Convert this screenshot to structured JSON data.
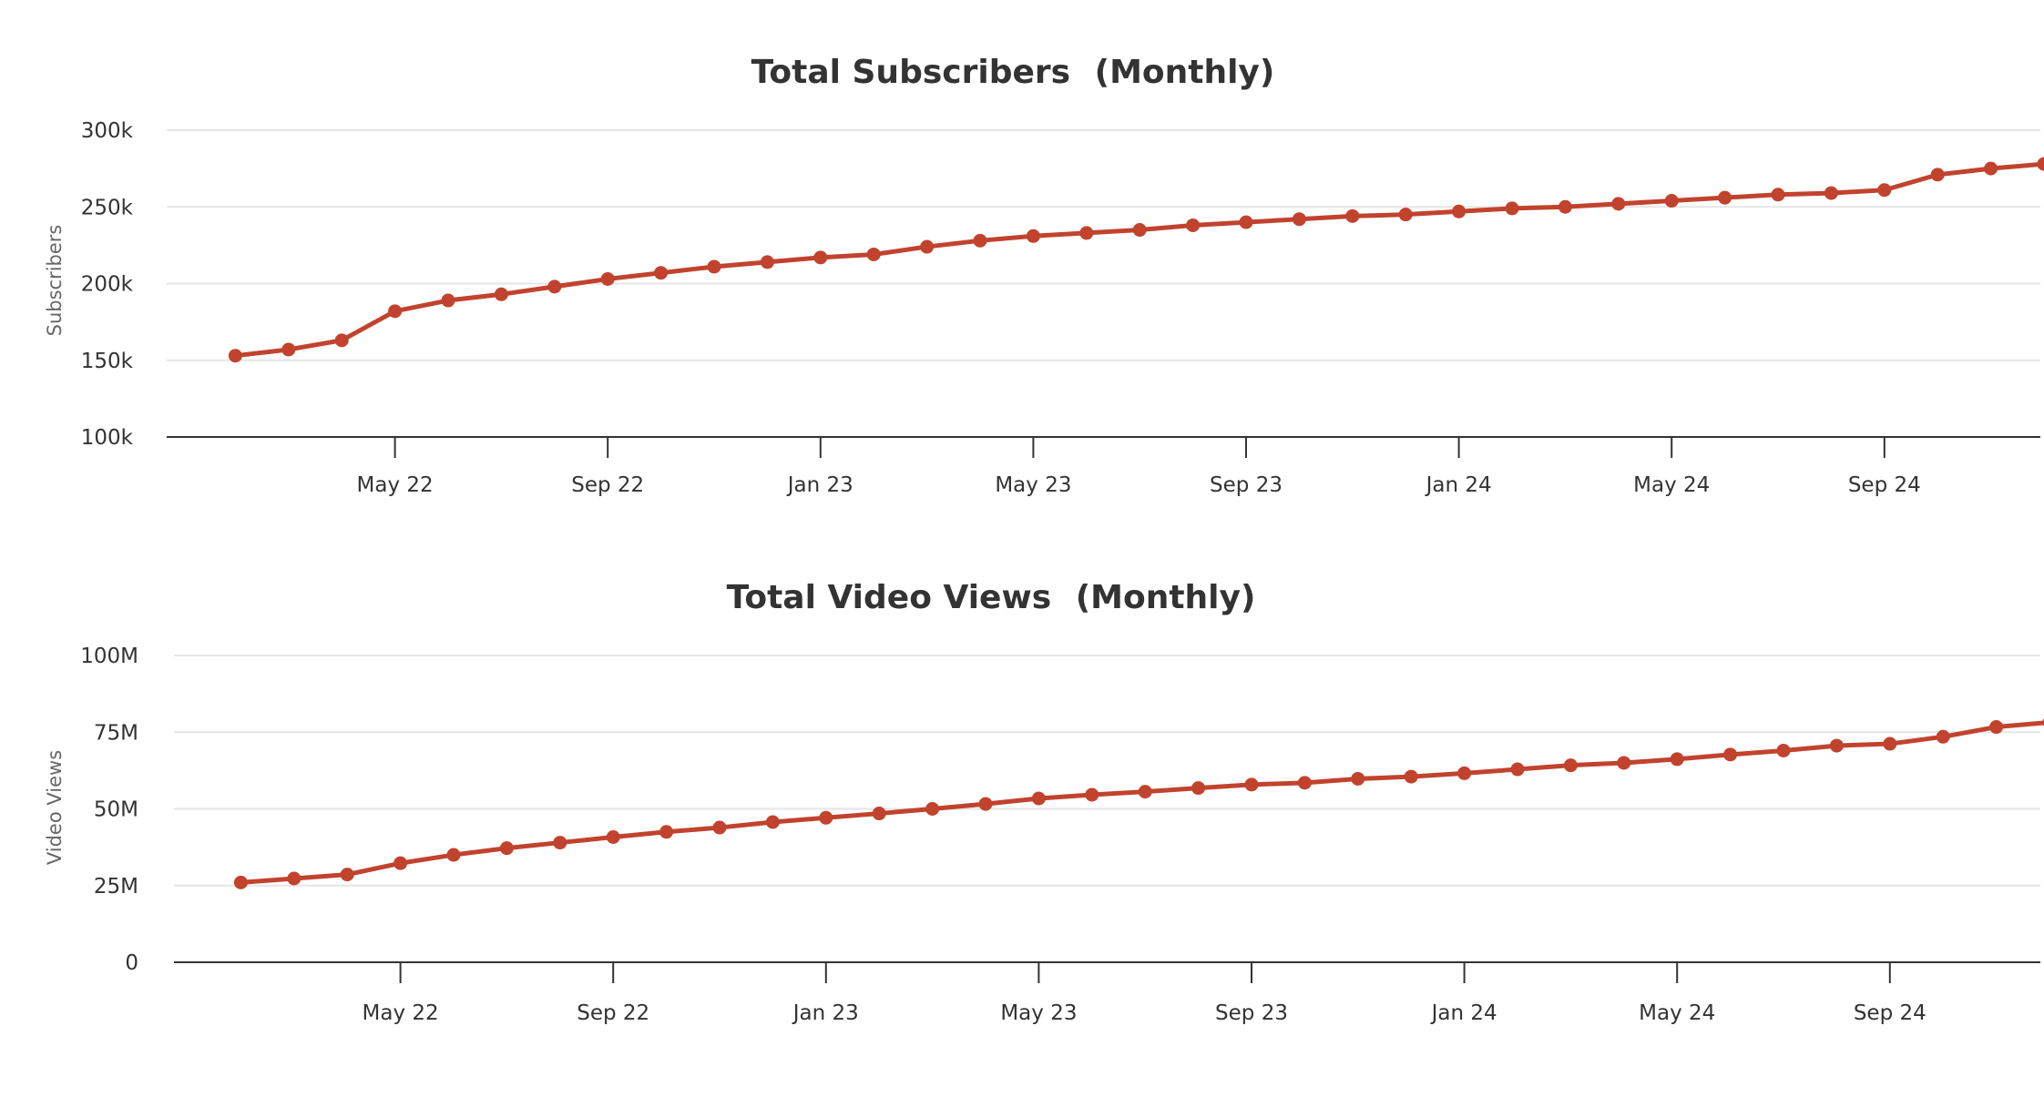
{
  "colors": {
    "series": "#c1432e",
    "grid": "#e6e6e6",
    "axis": "#333333",
    "text": "#333333"
  },
  "chart_data": [
    {
      "type": "line",
      "title": "Total Subscribers",
      "title_suffix": "(Monthly)",
      "ylabel": "Subscribers",
      "ylim": [
        100000,
        300000
      ],
      "yticks": [
        100000,
        150000,
        200000,
        250000,
        300000
      ],
      "ytick_labels": [
        "100k",
        "150k",
        "200k",
        "250k",
        "300k"
      ],
      "xtick_labels": [
        "May 22",
        "Sep 22",
        "Jan 23",
        "May 23",
        "Sep 23",
        "Jan 24",
        "May 24",
        "Sep 24"
      ],
      "grid": true,
      "series": [
        {
          "x": [
            "2022-02",
            "2022-03",
            "2022-04",
            "2022-05",
            "2022-06",
            "2022-07",
            "2022-08",
            "2022-09",
            "2022-10",
            "2022-11",
            "2022-12",
            "2023-01",
            "2023-02",
            "2023-03",
            "2023-04",
            "2023-05",
            "2023-06",
            "2023-07",
            "2023-08",
            "2023-09",
            "2023-10",
            "2023-11",
            "2023-12",
            "2024-01",
            "2024-02",
            "2024-03",
            "2024-04",
            "2024-05",
            "2024-06",
            "2024-07",
            "2024-08",
            "2024-09",
            "2024-10",
            "2024-11",
            "2024-12"
          ],
          "values": [
            153000,
            157000,
            163000,
            182000,
            189000,
            193000,
            198000,
            203000,
            207000,
            211000,
            214000,
            217000,
            219000,
            224000,
            228000,
            231000,
            233000,
            235000,
            238000,
            240000,
            242000,
            244000,
            245000,
            247000,
            249000,
            250000,
            252000,
            254000,
            256000,
            258000,
            259000,
            261000,
            271000,
            275000,
            278000
          ]
        }
      ]
    },
    {
      "type": "line",
      "title": "Total Video Views",
      "title_suffix": "(Monthly)",
      "ylabel": "Video Views",
      "ylim": [
        0,
        100000000
      ],
      "yticks": [
        0,
        25000000,
        50000000,
        75000000,
        100000000
      ],
      "ytick_labels": [
        "0",
        "25M",
        "50M",
        "75M",
        "100M"
      ],
      "xtick_labels": [
        "May 22",
        "Sep 22",
        "Jan 23",
        "May 23",
        "Sep 23",
        "Jan 24",
        "May 24",
        "Sep 24"
      ],
      "grid": true,
      "series": [
        {
          "x": [
            "2022-02",
            "2022-03",
            "2022-04",
            "2022-05",
            "2022-06",
            "2022-07",
            "2022-08",
            "2022-09",
            "2022-10",
            "2022-11",
            "2022-12",
            "2023-01",
            "2023-02",
            "2023-03",
            "2023-04",
            "2023-05",
            "2023-06",
            "2023-07",
            "2023-08",
            "2023-09",
            "2023-10",
            "2023-11",
            "2023-12",
            "2024-01",
            "2024-02",
            "2024-03",
            "2024-04",
            "2024-05",
            "2024-06",
            "2024-07",
            "2024-08",
            "2024-09",
            "2024-10",
            "2024-11",
            "2024-12"
          ],
          "values": [
            26000000,
            27300000,
            28600000,
            32300000,
            35000000,
            37200000,
            39000000,
            40800000,
            42500000,
            43900000,
            45700000,
            47100000,
            48500000,
            50000000,
            51600000,
            53400000,
            54600000,
            55600000,
            56800000,
            57900000,
            58500000,
            59800000,
            60500000,
            61600000,
            62900000,
            64200000,
            65000000,
            66200000,
            67700000,
            69000000,
            70600000,
            71200000,
            73500000,
            76700000,
            78200000
          ]
        }
      ]
    }
  ]
}
